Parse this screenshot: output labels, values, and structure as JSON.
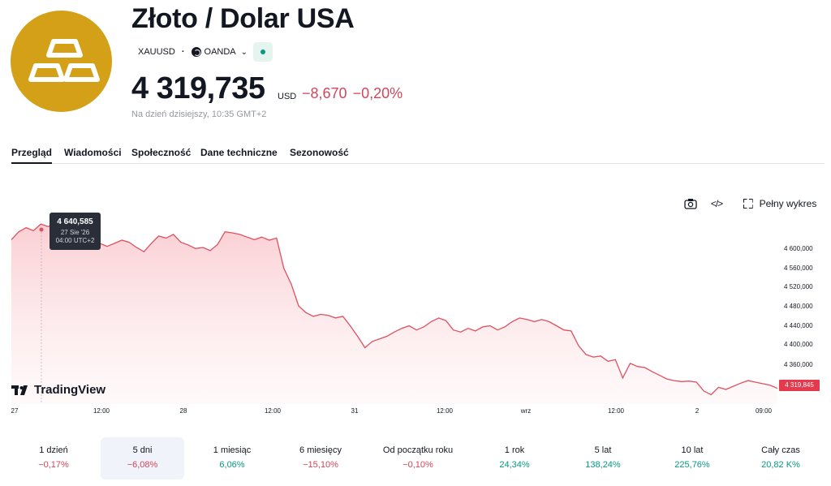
{
  "header": {
    "title": "Złoto / Dolar USA",
    "symbol": "XAUUSD",
    "broker": "OANDA",
    "price": "4 319,735",
    "currency": "USD",
    "change": "−8,670",
    "change_pct": "−0,20%",
    "as_of": "Na dzień dzisiejszy, 10:35 GMT+2"
  },
  "tabs": [
    {
      "label": "Przegląd"
    },
    {
      "label": "Wiadomości"
    },
    {
      "label": "Społeczność"
    },
    {
      "label": "Dane techniczne"
    },
    {
      "label": "Sezonowość"
    }
  ],
  "toolbar": {
    "full_chart_label": "Pełny wykres"
  },
  "tooltip": {
    "value": "4 640,585",
    "date": "27 Sie '26",
    "time": "04:00 UTC+2"
  },
  "brand": {
    "name": "TradingView"
  },
  "last_price_label": "4 319,845",
  "colors": {
    "line": "#e0505f",
    "fill": "#fde4e6",
    "negative": "#d3455b",
    "positive": "#089981",
    "gold": "#d4a017"
  },
  "chart_data": {
    "type": "area",
    "x_tick_labels": [
      "27",
      "12:00",
      "28",
      "12:00",
      "31",
      "12:00",
      "wrz",
      "12:00",
      "2",
      "09:00"
    ],
    "y_tick_labels": [
      "4 600,000",
      "4 560,000",
      "4 520,000",
      "4 480,000",
      "4 440,000",
      "4 400,000",
      "4 360,000"
    ],
    "ylim": [
      4290,
      4660
    ],
    "grid": false,
    "values": [
      4605,
      4620,
      4628,
      4622,
      4635,
      4630,
      4638,
      4640,
      4628,
      4615,
      4610,
      4615,
      4598,
      4592,
      4598,
      4604,
      4600,
      4590,
      4582,
      4598,
      4612,
      4608,
      4615,
      4600,
      4595,
      4588,
      4590,
      4584,
      4596,
      4620,
      4618,
      4615,
      4610,
      4605,
      4610,
      4604,
      4608,
      4550,
      4520,
      4478,
      4465,
      4458,
      4462,
      4460,
      4455,
      4458,
      4440,
      4420,
      4398,
      4410,
      4415,
      4420,
      4428,
      4435,
      4440,
      4432,
      4438,
      4448,
      4455,
      4450,
      4432,
      4428,
      4435,
      4430,
      4438,
      4440,
      4432,
      4438,
      4448,
      4455,
      4452,
      4448,
      4452,
      4448,
      4440,
      4432,
      4430,
      4402,
      4385,
      4380,
      4382,
      4372,
      4375,
      4340,
      4368,
      4362,
      4360,
      4352,
      4345,
      4338,
      4335,
      4333,
      4334,
      4332,
      4315,
      4308,
      4322,
      4318,
      4324,
      4330,
      4335,
      4332,
      4329,
      4326,
      4320
    ]
  },
  "periods": [
    {
      "label": "1 dzień",
      "value": "−0,17%",
      "sign": "neg",
      "active": false
    },
    {
      "label": "5 dni",
      "value": "−6,08%",
      "sign": "neg",
      "active": true
    },
    {
      "label": "1 miesiąc",
      "value": "6,06%",
      "sign": "pos",
      "active": false
    },
    {
      "label": "6 miesięcy",
      "value": "−15,10%",
      "sign": "neg",
      "active": false
    },
    {
      "label": "Od początku roku",
      "value": "−0,10%",
      "sign": "neg",
      "active": false
    },
    {
      "label": "1 rok",
      "value": "24,34%",
      "sign": "pos",
      "active": false
    },
    {
      "label": "5 lat",
      "value": "138,24%",
      "sign": "pos",
      "active": false
    },
    {
      "label": "10 lat",
      "value": "225,76%",
      "sign": "pos",
      "active": false
    },
    {
      "label": "Cały czas",
      "value": "20,82 K%",
      "sign": "pos",
      "active": false
    }
  ]
}
